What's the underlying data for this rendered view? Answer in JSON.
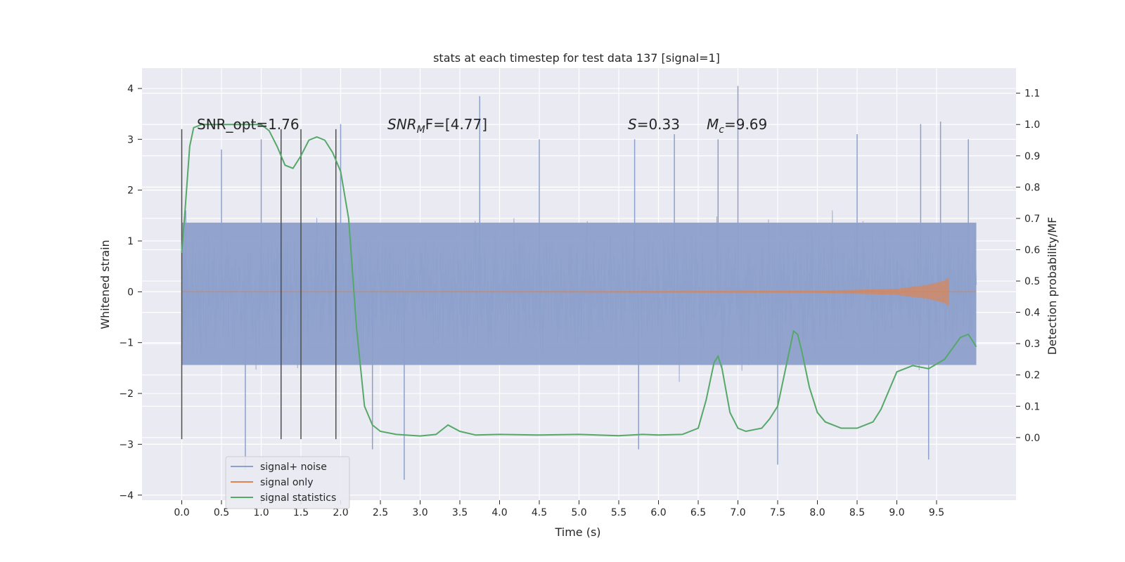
{
  "chart_data": {
    "type": "line",
    "title": "stats at each timestep for test data 137 [signal=1]",
    "xlabel": "Time (s)",
    "ylabel": "Whitened strain",
    "y2label": "Detection probability/MF",
    "xlim": [
      -0.5,
      10.5
    ],
    "ylim": [
      -4.1,
      4.4
    ],
    "y2lim": [
      -0.2,
      1.18
    ],
    "xticks": [
      "0.0",
      "0.5",
      "1.0",
      "1.5",
      "2.0",
      "2.5",
      "3.0",
      "3.5",
      "4.0",
      "4.5",
      "5.0",
      "5.5",
      "6.0",
      "6.5",
      "7.0",
      "7.5",
      "8.0",
      "8.5",
      "9.0",
      "9.5"
    ],
    "yticks": [
      "4",
      "3",
      "2",
      "1",
      "0",
      "−1",
      "−2",
      "−3",
      "−4"
    ],
    "y2ticks": [
      "1.1",
      "1.0",
      "0.9",
      "0.8",
      "0.7",
      "0.6",
      "0.5",
      "0.4",
      "0.3",
      "0.2",
      "0.1",
      "0.0"
    ],
    "grid": true,
    "legend_position": "lower-left",
    "colors": {
      "background": "#eaeaf2",
      "grid": "#ffffff",
      "signal_noise": "#8da0cb",
      "signal_only": "#dd8452",
      "statistics": "#55a868",
      "marker": "#4d4d4d"
    },
    "annotations": {
      "snr_opt": "SNR_opt=1.76",
      "snr_mf_base": "SNR",
      "snr_mf_sub": "M",
      "snr_mf_rest": "F=[4.77]",
      "s_label": "S",
      "s_value": "=0.33",
      "mc_label": "M",
      "mc_sub": "c",
      "mc_value": "=9.69"
    },
    "vertical_markers_x": [
      0.0,
      1.25,
      1.5,
      1.94
    ],
    "series": [
      {
        "name": "signal+ noise",
        "axis": "left",
        "typical_range": [
          -1.6,
          1.7
        ],
        "x_range": [
          0.0,
          10.0
        ],
        "spikes": [
          {
            "x": 0.05,
            "y": 1.6
          },
          {
            "x": 0.5,
            "y": 2.8
          },
          {
            "x": 0.8,
            "y": -3.5
          },
          {
            "x": 1.0,
            "y": 3.0
          },
          {
            "x": 2.0,
            "y": 3.3
          },
          {
            "x": 2.4,
            "y": -3.1
          },
          {
            "x": 2.8,
            "y": -3.7
          },
          {
            "x": 3.75,
            "y": 3.85
          },
          {
            "x": 5.7,
            "y": 3.0
          },
          {
            "x": 5.75,
            "y": -3.1
          },
          {
            "x": 6.75,
            "y": 3.0
          },
          {
            "x": 7.0,
            "y": 4.05
          },
          {
            "x": 7.5,
            "y": -3.4
          },
          {
            "x": 9.3,
            "y": 3.3
          },
          {
            "x": 9.55,
            "y": 3.35
          },
          {
            "x": 9.9,
            "y": 3.0
          },
          {
            "x": 9.4,
            "y": -3.3
          },
          {
            "x": 8.5,
            "y": 3.1
          },
          {
            "x": 4.5,
            "y": 3.0
          },
          {
            "x": 6.2,
            "y": 3.1
          }
        ]
      },
      {
        "name": "signal only",
        "axis": "left",
        "x": [
          0.0,
          8.0,
          9.0,
          9.4,
          9.6,
          9.65,
          9.66
        ],
        "amplitude": [
          0.0,
          0.02,
          0.06,
          0.14,
          0.22,
          0.28,
          0.0
        ]
      },
      {
        "name": "signal statistics",
        "axis": "right",
        "x": [
          0.0,
          0.04,
          0.1,
          0.15,
          0.25,
          0.4,
          0.6,
          0.8,
          1.0,
          1.1,
          1.2,
          1.3,
          1.4,
          1.5,
          1.6,
          1.7,
          1.8,
          1.9,
          2.0,
          2.1,
          2.2,
          2.3,
          2.4,
          2.5,
          2.7,
          3.0,
          3.2,
          3.35,
          3.5,
          3.7,
          4.0,
          4.5,
          5.0,
          5.5,
          5.8,
          6.0,
          6.3,
          6.5,
          6.6,
          6.7,
          6.75,
          6.8,
          6.9,
          7.0,
          7.1,
          7.3,
          7.4,
          7.5,
          7.6,
          7.7,
          7.75,
          7.8,
          7.9,
          8.0,
          8.1,
          8.3,
          8.5,
          8.7,
          8.8,
          8.9,
          9.0,
          9.2,
          9.4,
          9.6,
          9.8,
          9.9,
          10.0
        ],
        "y": [
          0.59,
          0.72,
          0.93,
          0.99,
          1.0,
          1.0,
          1.0,
          1.0,
          1.0,
          0.98,
          0.93,
          0.87,
          0.86,
          0.9,
          0.95,
          0.96,
          0.95,
          0.91,
          0.85,
          0.7,
          0.35,
          0.1,
          0.04,
          0.02,
          0.01,
          0.005,
          0.01,
          0.04,
          0.02,
          0.008,
          0.01,
          0.008,
          0.01,
          0.006,
          0.01,
          0.008,
          0.01,
          0.03,
          0.12,
          0.24,
          0.26,
          0.22,
          0.08,
          0.03,
          0.02,
          0.03,
          0.06,
          0.1,
          0.22,
          0.34,
          0.33,
          0.28,
          0.16,
          0.08,
          0.05,
          0.03,
          0.03,
          0.05,
          0.09,
          0.15,
          0.21,
          0.23,
          0.22,
          0.25,
          0.32,
          0.33,
          0.29
        ]
      }
    ]
  }
}
